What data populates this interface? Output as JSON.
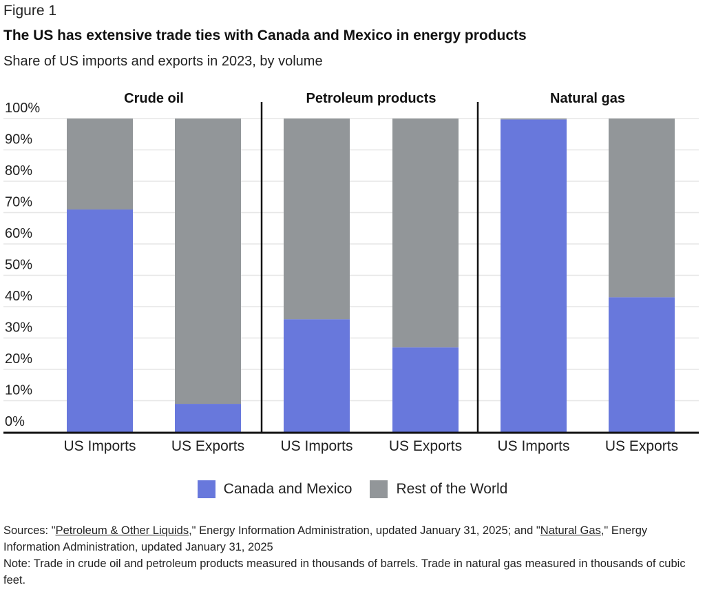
{
  "figure_label": "Figure 1",
  "chart_data": {
    "type": "bar",
    "stacked": true,
    "title": "The US has extensive trade ties with Canada and Mexico in energy products",
    "subtitle": "Share of US imports and exports in 2023, by volume",
    "panels": [
      {
        "title": "Crude oil",
        "categories": [
          "US Imports",
          "US Exports"
        ]
      },
      {
        "title": "Petroleum products",
        "categories": [
          "US Imports",
          "US Exports"
        ]
      },
      {
        "title": "Natural gas",
        "categories": [
          "US Imports",
          "US Exports"
        ]
      }
    ],
    "series": [
      {
        "name": "Canada and Mexico",
        "color": "#6878dc",
        "values": [
          71,
          9,
          36,
          27,
          99.7,
          43
        ]
      },
      {
        "name": "Rest of the World",
        "color": "#929699",
        "values": [
          29,
          91,
          64,
          73,
          0.3,
          57
        ]
      }
    ],
    "yticks": [
      "0%",
      "10%",
      "20%",
      "30%",
      "40%",
      "50%",
      "60%",
      "70%",
      "80%",
      "90%",
      "100%"
    ],
    "ylim": [
      0,
      100
    ],
    "grid": true,
    "legend": "bottom-center"
  },
  "notes": {
    "sources_prefix": "Sources: \"",
    "link1": "Petroleum & Other Liquids",
    "sources_mid": ",\" Energy Information Administration, updated January 31, 2025; and \"",
    "link2": "Natural Gas",
    "sources_end": ",\" Energy Information Administration, updated January 31, 2025",
    "note": "Note: Trade in crude oil and petroleum products measured in thousands of barrels. Trade in natural gas measured in thousands of cubic feet."
  }
}
